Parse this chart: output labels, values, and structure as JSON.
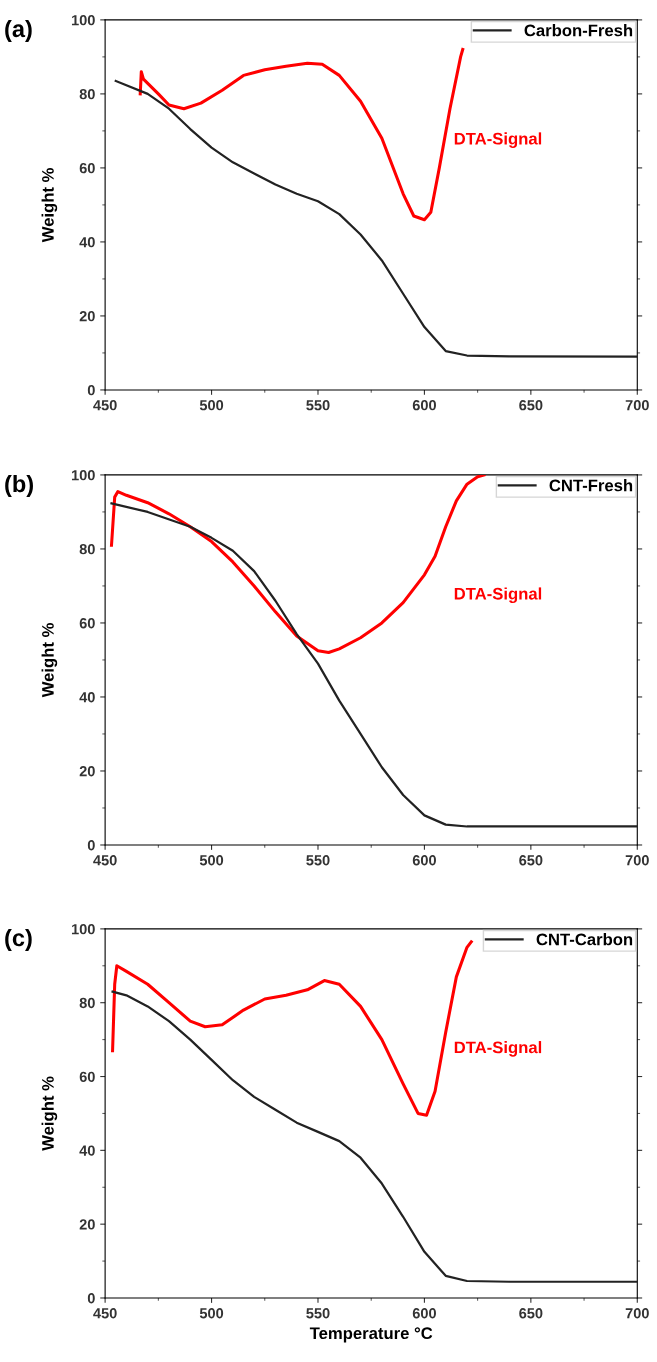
{
  "chart_data": [
    {
      "type": "line",
      "title": "(a)",
      "ylabel": "Weight %",
      "xlim": [
        450,
        700
      ],
      "xticks": [
        450,
        500,
        550,
        600,
        650,
        700
      ],
      "ylim": [
        0,
        100
      ],
      "yticks": [
        0,
        20,
        40,
        60,
        80,
        100
      ],
      "legend": "top right",
      "grid": false,
      "tick_labels": "xy",
      "series": [
        {
          "name": "Carbon-Fresh",
          "color": "#222222",
          "x": [
            455,
            470,
            480,
            490,
            500,
            510,
            520,
            530,
            540,
            550,
            560,
            570,
            580,
            590,
            600,
            610,
            620,
            640,
            700
          ],
          "values": [
            83.5,
            80,
            76,
            70.5,
            65.5,
            61.5,
            58.5,
            55.5,
            53,
            51,
            47.5,
            42,
            35,
            26,
            17,
            10.5,
            9.3,
            9.1,
            9
          ]
        },
        {
          "name": "DTA-Signal",
          "color": "#ff0000",
          "x": [
            466.5,
            467,
            468,
            475,
            480,
            487,
            495,
            505,
            515,
            525,
            535,
            545,
            552,
            560,
            570,
            580,
            590,
            595,
            600,
            603,
            607,
            612,
            617,
            618
          ],
          "values": [
            80,
            86,
            84,
            80,
            77,
            76,
            77.5,
            81,
            85,
            86.5,
            87.5,
            88.3,
            88,
            85,
            78,
            68,
            53,
            47,
            46,
            48,
            60,
            76,
            90,
            92
          ]
        }
      ]
    },
    {
      "type": "line",
      "title": "(b)",
      "ylabel": "Weight %",
      "xlim": [
        450,
        700
      ],
      "xticks": [
        450,
        500,
        550,
        600,
        650,
        700
      ],
      "ylim": [
        0,
        100
      ],
      "yticks": [
        0,
        20,
        40,
        60,
        80,
        100
      ],
      "legend": "top right",
      "grid": false,
      "series": [
        {
          "name": "CNT-Fresh",
          "color": "#222222",
          "x": [
            453,
            470,
            490,
            500,
            510,
            520,
            530,
            540,
            550,
            560,
            570,
            580,
            590,
            600,
            610,
            620,
            700
          ],
          "values": [
            92.3,
            90,
            86,
            83,
            79.5,
            74,
            66,
            57,
            49,
            39,
            30,
            21,
            13.5,
            8,
            5.5,
            5,
            5
          ]
        },
        {
          "name": "DTA-Signal",
          "color": "#ff0000",
          "x": [
            453,
            454.5,
            456,
            460,
            470,
            480,
            490,
            500,
            510,
            520,
            530,
            540,
            550,
            555,
            560,
            570,
            580,
            590,
            600,
            605,
            610,
            615,
            620,
            625,
            628
          ],
          "values": [
            81,
            94,
            95.5,
            94.5,
            92.5,
            89.5,
            86,
            82,
            76.5,
            70,
            63,
            56.5,
            52.5,
            52,
            53,
            56,
            60,
            65.5,
            73,
            78,
            86,
            93,
            97.5,
            99.5,
            100
          ]
        }
      ]
    },
    {
      "type": "line",
      "title": "(c)",
      "xlabel": "Temperature °C",
      "ylabel": "Weight %",
      "xlim": [
        450,
        700
      ],
      "xticks": [
        450,
        500,
        550,
        600,
        650,
        700
      ],
      "ylim": [
        0,
        100
      ],
      "yticks": [
        0,
        20,
        40,
        60,
        80,
        100
      ],
      "legend": "top right",
      "grid": false,
      "series": [
        {
          "name": "CNT-Carbon",
          "color": "#222222",
          "x": [
            453.5,
            460,
            470,
            480,
            490,
            500,
            510,
            520,
            530,
            540,
            550,
            560,
            570,
            580,
            590,
            600,
            610,
            620,
            640,
            700
          ],
          "values": [
            83,
            82,
            79,
            75,
            70,
            64.5,
            59,
            54.5,
            51,
            47.5,
            45,
            42.5,
            38,
            31,
            22,
            12.5,
            6,
            4.6,
            4.4,
            4.4
          ]
        },
        {
          "name": "DTA-Signal",
          "color": "#ff0000",
          "x": [
            453.5,
            454.5,
            455.5,
            460,
            470,
            480,
            490,
            497,
            505,
            515,
            525,
            535,
            545,
            553,
            560,
            570,
            580,
            590,
            597,
            601,
            605,
            610,
            615,
            620,
            622
          ],
          "values": [
            67,
            85,
            90,
            88.5,
            85,
            80,
            75,
            73.5,
            74,
            78,
            81,
            82,
            83.5,
            86,
            85,
            79,
            70,
            58,
            50,
            49.5,
            56,
            72,
            87,
            95,
            96.5
          ]
        }
      ]
    }
  ]
}
